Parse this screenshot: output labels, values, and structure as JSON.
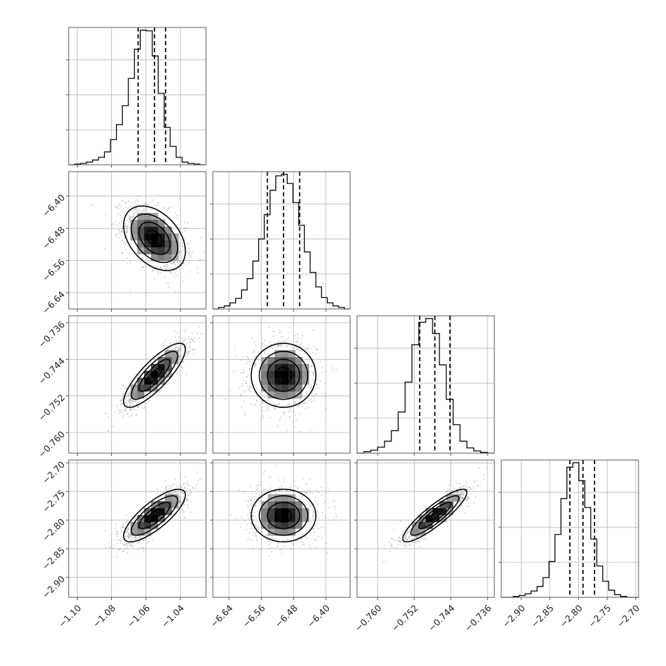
{
  "chart_data": {
    "type": "corner",
    "grid": true,
    "quantile_lines": [
      0.16,
      0.5,
      0.84
    ],
    "colors": {
      "line": "#000000",
      "grid": "#b0b0b0",
      "frame": "#555555",
      "points": "#555555"
    },
    "params": [
      {
        "axis_range": [
          -1.105,
          -1.025
        ],
        "ticks": [
          -1.1,
          -1.08,
          -1.06,
          -1.04
        ],
        "tick_labels": [
          "−1.10",
          "−1.08",
          "−1.06",
          "−1.04"
        ],
        "center": -1.055,
        "sd": 0.009,
        "quantiles": [
          -1.0645,
          -1.055,
          -1.0485
        ],
        "hist_counts": [
          0,
          1,
          2,
          4,
          7,
          11,
          19,
          37,
          59,
          87,
          127,
          170,
          198,
          197,
          160,
          105,
          55,
          27,
          11,
          4,
          2,
          1,
          0
        ]
      },
      {
        "axis_range": [
          -6.68,
          -6.34
        ],
        "ticks": [
          -6.64,
          -6.56,
          -6.48,
          -6.4
        ],
        "tick_labels": [
          "−6.64",
          "−6.56",
          "−6.48",
          "−6.40"
        ],
        "center": -6.505,
        "sd": 0.04,
        "quantiles": [
          -6.545,
          -6.505,
          -6.465
        ],
        "hist_counts": [
          0,
          2,
          4,
          8,
          14,
          25,
          40,
          63,
          92,
          124,
          156,
          175,
          177,
          165,
          140,
          110,
          75,
          48,
          29,
          15,
          8,
          4,
          2,
          0
        ]
      },
      {
        "axis_range": [
          -0.7645,
          -0.7345
        ],
        "ticks": [
          -0.76,
          -0.752,
          -0.744,
          -0.736
        ],
        "tick_labels": [
          "−0.760",
          "−0.752",
          "−0.744",
          "−0.736"
        ],
        "center": -0.7475,
        "sd": 0.0035,
        "quantiles": [
          -0.7508,
          -0.7475,
          -0.7442
        ],
        "hist_counts": [
          0,
          2,
          4,
          8,
          16,
          30,
          55,
          95,
          145,
          175,
          180,
          160,
          118,
          72,
          38,
          16,
          7,
          3,
          1,
          0
        ]
      },
      {
        "axis_range": [
          -2.935,
          -2.695
        ],
        "ticks": [
          -2.9,
          -2.85,
          -2.8,
          -2.75,
          -2.7
        ],
        "tick_labels": [
          "−2.90",
          "−2.85",
          "−2.80",
          "−2.75",
          "−2.70"
        ],
        "center": -2.792,
        "sd": 0.023,
        "quantiles": [
          -2.815,
          -2.792,
          -2.772
        ],
        "hist_counts": [
          0,
          0,
          1,
          2,
          4,
          7,
          12,
          22,
          40,
          70,
          110,
          145,
          150,
          130,
          100,
          65,
          35,
          18,
          8,
          3,
          1,
          0,
          0
        ]
      }
    ],
    "correlations": {
      "1-0": -0.4,
      "2-0": 0.82,
      "2-1": 0.0,
      "3-0": 0.78,
      "3-1": 0.0,
      "3-2": 0.88
    }
  }
}
